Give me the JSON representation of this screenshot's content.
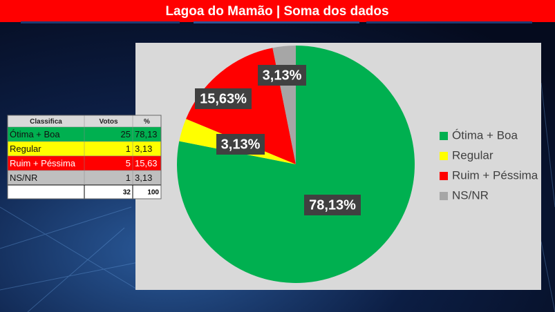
{
  "chart_data": {
    "type": "pie",
    "title": "Lagoa do Mamão | Soma dos dados",
    "categories": [
      "Ótima + Boa",
      "Regular",
      "Ruim + Péssima",
      "NS/NR"
    ],
    "values": [
      78.13,
      3.13,
      15.63,
      3.13
    ],
    "value_labels": [
      "78,13%",
      "3,13%",
      "15,63%",
      "3,13%"
    ],
    "colors": [
      "#00b050",
      "#ffff00",
      "#ff0000",
      "#a6a6a6"
    ],
    "legend": "right"
  },
  "table": {
    "header": [
      "Classifica",
      "Votos",
      "%"
    ],
    "rows": [
      [
        "Ótima + Boa",
        25,
        "78,13"
      ],
      [
        "Regular",
        1,
        "3,13"
      ],
      [
        "Ruim + Péssima",
        5,
        "15,63"
      ],
      [
        "NS/NR",
        1,
        "3,13"
      ]
    ],
    "total": [
      32,
      100
    ]
  }
}
